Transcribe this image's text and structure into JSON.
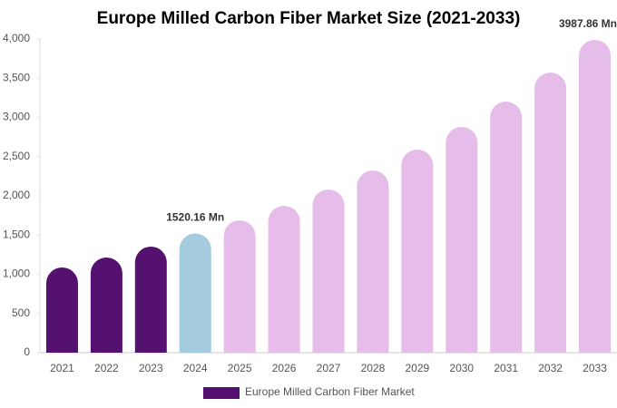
{
  "chart_data": {
    "type": "bar",
    "title": "Europe Milled Carbon Fiber Market Size (2021-2033)",
    "categories": [
      "2021",
      "2022",
      "2023",
      "2024",
      "2025",
      "2026",
      "2027",
      "2028",
      "2029",
      "2030",
      "2031",
      "2032",
      "2033"
    ],
    "series": [
      {
        "name": "Europe Milled Carbon Fiber Market",
        "color": "#541170",
        "colors": [
          "#541170",
          "#541170",
          "#541170",
          "#a5cbdf",
          "#e6bde9",
          "#e6bde9",
          "#e6bde9",
          "#e6bde9",
          "#e6bde9",
          "#e6bde9",
          "#e6bde9",
          "#e6bde9",
          "#e6bde9"
        ],
        "values": [
          1087,
          1214,
          1353,
          1520.16,
          1688,
          1873,
          2081,
          2324,
          2590,
          2879,
          3202,
          3572,
          3987.86
        ],
        "value_labels": [
          null,
          null,
          null,
          "1520.16 Mn",
          null,
          null,
          null,
          null,
          null,
          null,
          null,
          null,
          "3987.86 Mn"
        ]
      }
    ],
    "ylim": [
      0,
      4000
    ],
    "yticks": [
      0,
      500,
      {
        "value": 1000,
        "label": "1,000"
      },
      {
        "value": 1500,
        "label": "1,500"
      },
      {
        "value": 2000,
        "label": "2,000"
      },
      {
        "value": 2500,
        "label": "2,500"
      },
      {
        "value": 3000,
        "label": "3,000"
      },
      {
        "value": 3500,
        "label": "3,500"
      },
      {
        "value": 4000,
        "label": "4,000"
      }
    ],
    "grid": false,
    "legend": "bottom"
  }
}
